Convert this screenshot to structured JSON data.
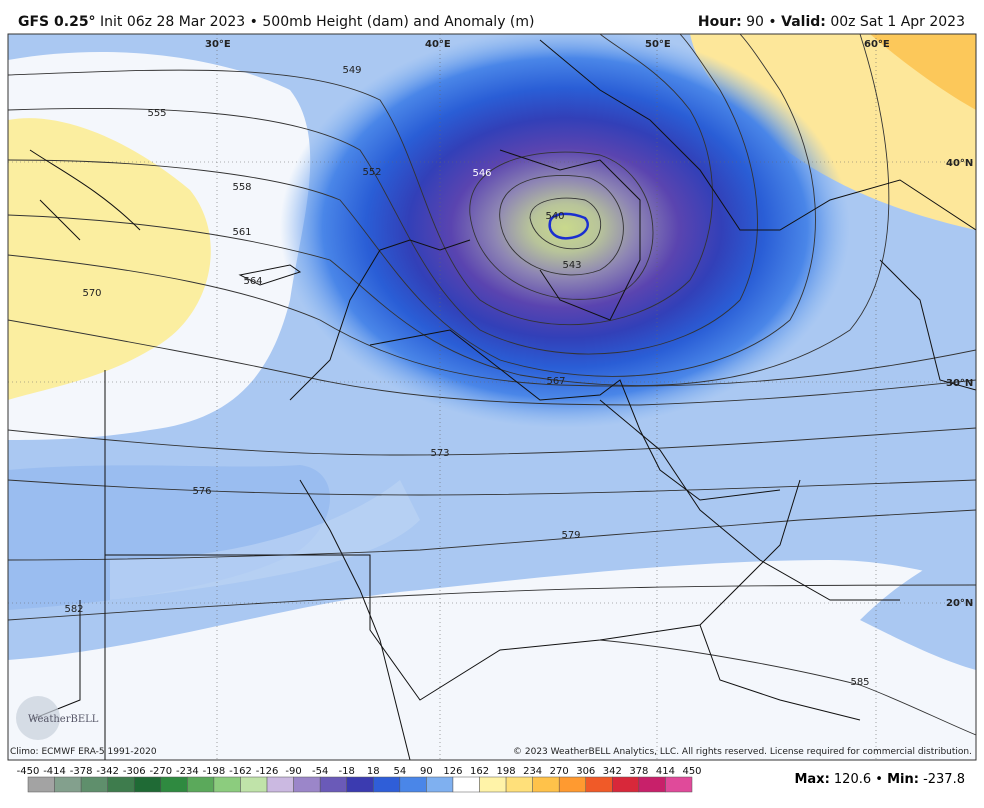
{
  "header": {
    "model": "GFS 0.25°",
    "title": "Init 06z 28 Mar 2023 • 500mb Height (dam) and Anomaly (m)",
    "hour_label": "Hour:",
    "hour": "90 •",
    "valid_label": "Valid:",
    "valid": "00z Sat 1 Apr 2023"
  },
  "map": {
    "lon_labels": [
      "30°E",
      "40°E",
      "50°E",
      "60°E"
    ],
    "lat_labels": [
      "40°N",
      "30°N",
      "20°N"
    ],
    "contour_labels": [
      549,
      555,
      558,
      552,
      546,
      540,
      543,
      561,
      564,
      570,
      567,
      573,
      576,
      579,
      582,
      585
    ],
    "logo": "WeatherBELL"
  },
  "footer": {
    "climo": "Climo: ECMWF ERA-5 1991-2020",
    "copyright": "© 2023 WeatherBELL Analytics, LLC. All rights reserved. License required for commercial distribution."
  },
  "colorbar": {
    "ticks": [
      -450,
      -414,
      -378,
      -342,
      -306,
      -270,
      -234,
      -198,
      -162,
      -126,
      -90,
      -54,
      -18,
      18,
      54,
      90,
      126,
      162,
      198,
      234,
      270,
      306,
      342,
      378,
      414,
      450
    ],
    "colors": [
      "#a3a3a3",
      "#83a08d",
      "#5f8f6c",
      "#3e7c4d",
      "#1f6a35",
      "#2f8a40",
      "#5ba95b",
      "#8ccc7e",
      "#c0e3a9",
      "#cbb9e1",
      "#9b86c9",
      "#6a5ab8",
      "#3b3bb0",
      "#2f5ed8",
      "#4a86e8",
      "#7fb0f0",
      "#ffffff",
      "#fff3a8",
      "#ffe07a",
      "#ffc24a",
      "#ff9a30",
      "#f05a28",
      "#d8283a",
      "#c8206a",
      "#e04a9a"
    ]
  },
  "stats": {
    "max_label": "Max:",
    "max": 120.6,
    "sep": "•",
    "min_label": "Min:",
    "min": -237.8
  }
}
